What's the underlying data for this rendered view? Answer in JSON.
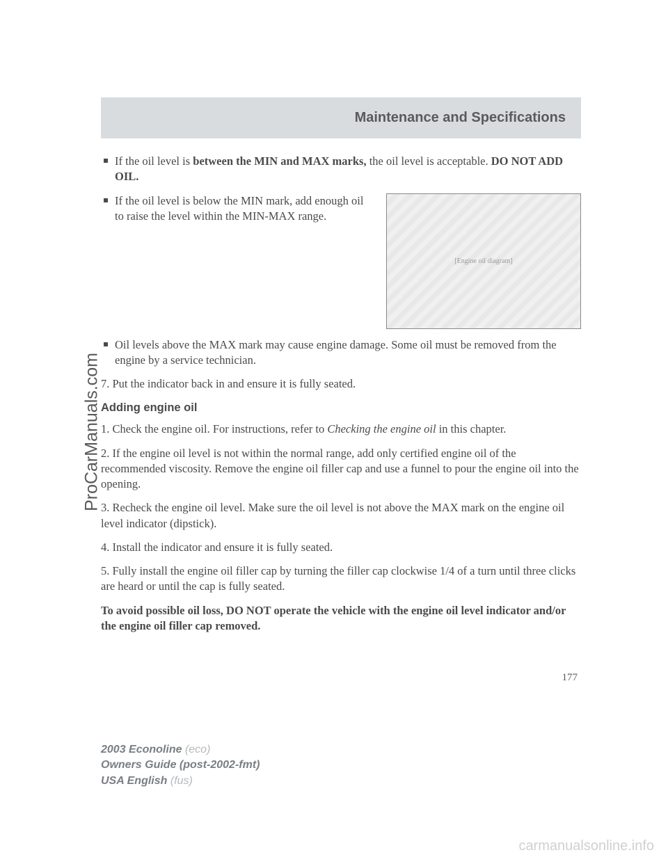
{
  "header": {
    "title": "Maintenance and Specifications"
  },
  "content": {
    "bullet1_prefix": "If the oil level is ",
    "bullet1_bold": "between the MIN and MAX marks,",
    "bullet1_suffix": " the oil level is acceptable. ",
    "bullet1_bold2": "DO NOT ADD OIL.",
    "bullet2": "If the oil level is below the MIN mark, add enough oil to raise the level within the MIN-MAX range.",
    "bullet3": "Oil levels above the MAX mark may cause engine damage. Some oil must be removed from the engine by a service technician.",
    "step7": "7. Put the indicator back in and ensure it is fully seated.",
    "subheading": "Adding engine oil",
    "step1_prefix": "1. Check the engine oil. For instructions, refer to ",
    "step1_italic": "Checking the engine oil",
    "step1_suffix": " in this chapter.",
    "step2": "2. If the engine oil level is not within the normal range, add only certified engine oil of the recommended viscosity. Remove the engine oil filler cap and use a funnel to pour the engine oil into the opening.",
    "step3": "3. Recheck the engine oil level. Make sure the oil level is not above the MAX mark on the engine oil level indicator (dipstick).",
    "step4": "4. Install the indicator and ensure it is fully seated.",
    "step5": "5. Fully install the engine oil filler cap by turning the filler cap clockwise 1/4 of a turn until three clicks are heard or until the cap is fully seated.",
    "warning": "To avoid possible oil loss, DO NOT operate the vehicle with the engine oil level indicator and/or the engine oil filler cap removed."
  },
  "page_number": "177",
  "footer": {
    "line1_bold": "2003 Econoline",
    "line1_light": " (eco)",
    "line2_bold": "Owners Guide (post-2002-fmt)",
    "line3_bold": "USA English",
    "line3_light": " (fus)"
  },
  "watermarks": {
    "left": "ProCarManuals.com",
    "bottom": "carmanualsonline.info"
  },
  "image_alt": "[Engine oil diagram]"
}
